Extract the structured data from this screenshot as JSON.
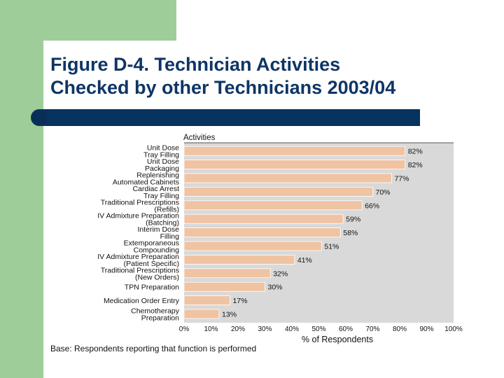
{
  "slide": {
    "title_line1": "Figure D-4. Technician Activities",
    "title_line2": "Checked by other Technicians 2003/04"
  },
  "colors": {
    "side_band": "#9fcd9a",
    "title_text": "#0e3566",
    "rule_bar": "#06335f",
    "bar_fill": "#f0c3a2",
    "plot_background": "#d9d9d9"
  },
  "chart_data": {
    "type": "bar",
    "orientation": "horizontal",
    "y_heading": "Activities",
    "xlabel": "% of Respondents",
    "footnote": "Base: Respondents reporting that function is performed",
    "xlim": [
      0,
      100
    ],
    "x_ticks": [
      "0%",
      "10%",
      "20%",
      "30%",
      "40%",
      "50%",
      "60%",
      "70%",
      "80%",
      "90%",
      "100%"
    ],
    "categories": [
      [
        "Unit Dose",
        "Tray Filling"
      ],
      [
        "Unit Dose",
        "Packaging"
      ],
      [
        "Replenishing",
        "Automated Cabinets"
      ],
      [
        "Cardiac Arrest",
        "Tray Filling"
      ],
      [
        "Traditional Prescriptions",
        "(Refills)"
      ],
      [
        "IV Admixture Preparation",
        "(Batching)"
      ],
      [
        "Interim Dose",
        "Filling"
      ],
      [
        "Extemporaneous",
        "Compounding"
      ],
      [
        "IV Admixture Preparation",
        "(Patient Specific)"
      ],
      [
        "Traditional Prescriptions",
        "(New Orders)"
      ],
      [
        "TPN Preparation"
      ],
      [
        "Medication Order Entry"
      ],
      [
        "Chemotherapy",
        "Preparation"
      ]
    ],
    "values": [
      82,
      82,
      77,
      70,
      66,
      59,
      58,
      51,
      41,
      32,
      30,
      17,
      13
    ],
    "value_labels": [
      "82%",
      "82%",
      "77%",
      "70%",
      "66%",
      "59%",
      "58%",
      "51%",
      "41%",
      "32%",
      "30%",
      "17%",
      "13%"
    ],
    "grid": false,
    "legend": "none"
  }
}
